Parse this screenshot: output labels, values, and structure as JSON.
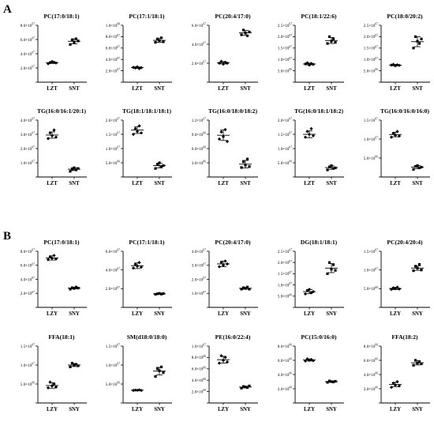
{
  "panel_labels": [
    "A",
    "B"
  ],
  "chart_data": [
    {
      "type": "scatter",
      "title": "PC(17:0/18:1)",
      "categories": [
        "LZT",
        "SNT"
      ],
      "yticks": [
        {
          "m": "2.0",
          "e": "07"
        },
        {
          "m": "4.0",
          "e": "07"
        },
        {
          "m": "6.0",
          "e": "07"
        },
        {
          "m": "8.0",
          "e": "07"
        }
      ],
      "ylim": [
        0,
        80000000.0
      ],
      "series": [
        {
          "values": [
            26000000.0,
            27500000.0,
            29000000.0,
            28000000.0,
            27000000.0
          ]
        },
        {
          "values": [
            53000000.0,
            59000000.0,
            56000000.0,
            61000000.0,
            58000000.0
          ]
        }
      ],
      "mean": [
        27500000.0,
        57500000.0
      ],
      "sd": [
        1200000.0,
        3500000.0
      ]
    },
    {
      "type": "scatter",
      "title": "PC(17:1/18:1)",
      "categories": [
        "LZT",
        "SNT"
      ],
      "yticks": [
        {
          "m": "2.0",
          "e": "07"
        },
        {
          "m": "4.0",
          "e": "07"
        },
        {
          "m": "6.0",
          "e": "07"
        },
        {
          "m": "8.0",
          "e": "07"
        },
        {
          "m": "1.0",
          "e": "08"
        }
      ],
      "ylim": [
        0,
        100000000.0
      ],
      "series": [
        {
          "values": [
            26000000.0,
            25000000.0,
            27000000.0,
            24000000.0,
            25500000.0
          ]
        },
        {
          "values": [
            70000000.0,
            76000000.0,
            73000000.0,
            78000000.0,
            71000000.0
          ]
        }
      ],
      "mean": [
        25500000.0,
        73500000.0
      ],
      "sd": [
        1200000.0,
        3500000.0
      ]
    },
    {
      "type": "scatter",
      "title": "PC(20:4/17:0)",
      "categories": [
        "LZT",
        "SNT"
      ],
      "yticks": [
        {
          "m": "2.0",
          "e": "07"
        },
        {
          "m": "4.0",
          "e": "07"
        },
        {
          "m": "6.0",
          "e": "07"
        }
      ],
      "ylim": [
        0,
        60000000.0
      ],
      "series": [
        {
          "values": [
            20000000.0,
            22000000.0,
            19000000.0,
            21000000.0,
            20000000.0
          ]
        },
        {
          "values": [
            50000000.0,
            55000000.0,
            52000000.0,
            49000000.0,
            53000000.0
          ]
        }
      ],
      "mean": [
        20500000.0,
        52000000.0
      ],
      "sd": [
        1200000.0,
        2500000.0
      ]
    },
    {
      "type": "scatter",
      "title": "PC(18:1/22:6)",
      "categories": [
        "LZT",
        "SNT"
      ],
      "yticks": [
        {
          "m": "5.0",
          "e": "06"
        },
        {
          "m": "1.0",
          "e": "07"
        },
        {
          "m": "1.5",
          "e": "07"
        },
        {
          "m": "2.0",
          "e": "07"
        },
        {
          "m": "2.5",
          "e": "07"
        }
      ],
      "ylim": [
        0,
        25000000.0
      ],
      "series": [
        {
          "values": [
            8000000.0,
            8500000.0,
            7500000.0,
            8200000.0,
            7800000.0
          ]
        },
        {
          "values": [
            17000000.0,
            20000000.0,
            18000000.0,
            19000000.0,
            17500000.0
          ]
        }
      ],
      "mean": [
        8000000.0,
        18300000.0
      ],
      "sd": [
        400000.0,
        1300000.0
      ]
    },
    {
      "type": "scatter",
      "title": "PC(18:0/20:2)",
      "categories": [
        "LZT",
        "SNT"
      ],
      "yticks": [
        {
          "m": "5.0",
          "e": "06"
        },
        {
          "m": "1.0",
          "e": "07"
        },
        {
          "m": "1.5",
          "e": "07"
        },
        {
          "m": "2.0",
          "e": "07"
        },
        {
          "m": "2.5",
          "e": "07"
        }
      ],
      "ylim": [
        0,
        25000000.0
      ],
      "series": [
        {
          "values": [
            7500000.0,
            7800000.0,
            7200000.0,
            7600000.0,
            7400000.0
          ]
        },
        {
          "values": [
            15000000.0,
            20000000.0,
            18000000.0,
            17000000.0,
            19000000.0
          ]
        }
      ],
      "mean": [
        7500000.0,
        17800000.0
      ],
      "sd": [
        300000.0,
        2200000.0
      ]
    },
    {
      "type": "scatter",
      "title": "TG(16:0/16:1/20:1)",
      "categories": [
        "LZT",
        "SNT"
      ],
      "yticks": [
        {
          "m": "1.0",
          "e": "07"
        },
        {
          "m": "2.0",
          "e": "07"
        },
        {
          "m": "3.0",
          "e": "07"
        },
        {
          "m": "4.0",
          "e": "07"
        }
      ],
      "ylim": [
        0,
        40000000.0
      ],
      "series": [
        {
          "values": [
            27000000.0,
            31000000.0,
            29000000.0,
            33000000.0,
            28000000.0
          ]
        },
        {
          "values": [
            4000000.0,
            5500000.0,
            6500000.0,
            5000000.0,
            6000000.0
          ]
        }
      ],
      "mean": [
        29500000.0,
        5500000.0
      ],
      "sd": [
        2200000.0,
        1000000.0
      ]
    },
    {
      "type": "scatter",
      "title": "TG(18:1/18:1/18:1)",
      "categories": [
        "LZT",
        "SNT"
      ],
      "yticks": [
        {
          "m": "5.0",
          "e": "06"
        },
        {
          "m": "1.0",
          "e": "07"
        },
        {
          "m": "1.5",
          "e": "07"
        },
        {
          "m": "2.0",
          "e": "07"
        }
      ],
      "ylim": [
        0,
        20000000.0
      ],
      "series": [
        {
          "values": [
            15000000.0,
            17000000.0,
            16000000.0,
            18000000.0,
            15500000.0
          ]
        },
        {
          "values": [
            3000000.0,
            4500000.0,
            5000000.0,
            3500000.0,
            4000000.0
          ]
        }
      ],
      "mean": [
        16500000.0,
        4000000.0
      ],
      "sd": [
        1200000.0,
        800000.0
      ]
    },
    {
      "type": "scatter",
      "title": "TG(16:0/18:0/18:2)",
      "categories": [
        "LZT",
        "SNT"
      ],
      "yticks": [
        {
          "m": "3.0",
          "e": "06"
        },
        {
          "m": "6.0",
          "e": "06"
        },
        {
          "m": "9.0",
          "e": "06"
        },
        {
          "m": "1.2",
          "e": "07"
        }
      ],
      "ylim": [
        0,
        12000000.0
      ],
      "series": [
        {
          "values": [
            8000000.0,
            9500000.0,
            8500000.0,
            10000000.0,
            7500000.0
          ]
        },
        {
          "values": [
            2000000.0,
            3200000.0,
            2500000.0,
            3800000.0,
            2200000.0
          ]
        }
      ],
      "mean": [
        8800000.0,
        2700000.0
      ],
      "sd": [
        1100000.0,
        800000.0
      ]
    },
    {
      "type": "scatter",
      "title": "TG(16:0/18:1/18:2)",
      "categories": [
        "LZT",
        "SNT"
      ],
      "yticks": [
        {
          "m": "5.0",
          "e": "06"
        },
        {
          "m": "1.0",
          "e": "07"
        },
        {
          "m": "1.5",
          "e": "07"
        },
        {
          "m": "2.0",
          "e": "07"
        }
      ],
      "ylim": [
        0,
        20000000.0
      ],
      "series": [
        {
          "values": [
            14000000.0,
            16000000.0,
            15000000.0,
            17000000.0,
            14500000.0
          ]
        },
        {
          "values": [
            2500000.0,
            3500000.0,
            4000000.0,
            3000000.0,
            3200000.0
          ]
        }
      ],
      "mean": [
        15000000.0,
        3300000.0
      ],
      "sd": [
        1200000.0,
        600000.0
      ]
    },
    {
      "type": "scatter",
      "title": "TG(16:0/16:0/16:0)",
      "categories": [
        "LZT",
        "SNT"
      ],
      "yticks": [
        {
          "m": "5.0",
          "e": "06"
        },
        {
          "m": "1.0",
          "e": "07"
        },
        {
          "m": "1.5",
          "e": "07"
        }
      ],
      "ylim": [
        0,
        15000000.0
      ],
      "series": [
        {
          "values": [
            10500000.0,
            11500000.0,
            11000000.0,
            12000000.0,
            10800000.0
          ]
        },
        {
          "values": [
            2000000.0,
            2800000.0,
            3000000.0,
            2400000.0,
            2600000.0
          ]
        }
      ],
      "mean": [
        11200000.0,
        2600000.0
      ],
      "sd": [
        600000.0,
        400000.0
      ]
    },
    {
      "type": "scatter",
      "title": "PC(17:0/18:1)",
      "categories": [
        "LZY",
        "SNY"
      ],
      "yticks": [
        {
          "m": "2.0",
          "e": "07"
        },
        {
          "m": "4.0",
          "e": "07"
        },
        {
          "m": "6.0",
          "e": "07"
        },
        {
          "m": "8.0",
          "e": "07"
        }
      ],
      "ylim": [
        0,
        80000000.0
      ],
      "series": [
        {
          "values": [
            68000000.0,
            72000000.0,
            70000000.0,
            74000000.0,
            69000000.0
          ]
        },
        {
          "values": [
            26000000.0,
            28000000.0,
            27000000.0,
            29000000.0,
            27500000.0
          ]
        }
      ],
      "mean": [
        70500000.0,
        27500000.0
      ],
      "sd": [
        3000000.0,
        1200000.0
      ]
    },
    {
      "type": "scatter",
      "title": "PC(17:1/18:1)",
      "categories": [
        "LZY",
        "SNY"
      ],
      "yticks": [
        {
          "m": "2.0",
          "e": "07"
        },
        {
          "m": "4.0",
          "e": "07"
        },
        {
          "m": "6.0",
          "e": "07"
        }
      ],
      "ylim": [
        0,
        60000000.0
      ],
      "series": [
        {
          "values": [
            42000000.0,
            46000000.0,
            44000000.0,
            48000000.0,
            43000000.0
          ]
        },
        {
          "values": [
            14000000.0,
            14500000.0,
            15000000.0,
            14200000.0,
            14800000.0
          ]
        }
      ],
      "mean": [
        44500000.0,
        14500000.0
      ],
      "sd": [
        3000000.0,
        500000.0
      ]
    },
    {
      "type": "scatter",
      "title": "PC(20:4/17:0)",
      "categories": [
        "LZY",
        "SNY"
      ],
      "yticks": [
        {
          "m": "1.0",
          "e": "07"
        },
        {
          "m": "2.0",
          "e": "07"
        },
        {
          "m": "3.0",
          "e": "07"
        },
        {
          "m": "4.0",
          "e": "07"
        }
      ],
      "ylim": [
        0,
        40000000.0
      ],
      "series": [
        {
          "values": [
            29000000.0,
            32000000.0,
            30000000.0,
            33000000.0,
            31000000.0
          ]
        },
        {
          "values": [
            13000000.0,
            14000000.0,
            13500000.0,
            14500000.0,
            13000000.0
          ]
        }
      ],
      "mean": [
        31000000.0,
        13600000.0
      ],
      "sd": [
        2000000.0,
        700000.0
      ]
    },
    {
      "type": "scatter",
      "title": "DG(18:1/18:1)",
      "categories": [
        "LZY",
        "SNY"
      ],
      "yticks": [
        {
          "m": "5.0",
          "e": "06"
        },
        {
          "m": "1.0",
          "e": "07"
        },
        {
          "m": "1.5",
          "e": "07"
        },
        {
          "m": "2.0",
          "e": "07"
        },
        {
          "m": "2.5",
          "e": "07"
        }
      ],
      "ylim": [
        0,
        25000000.0
      ],
      "series": [
        {
          "values": [
            6000000.0,
            7500000.0,
            8000000.0,
            6500000.0,
            7000000.0
          ]
        },
        {
          "values": [
            15000000.0,
            20000000.0,
            17000000.0,
            19000000.0,
            16500000.0
          ]
        }
      ],
      "mean": [
        7000000.0,
        17500000.0
      ],
      "sd": [
        900000.0,
        2000000.0
      ]
    },
    {
      "type": "scatter",
      "title": "PC(20:4/20:4)",
      "categories": [
        "LZY",
        "SNY"
      ],
      "yticks": [
        {
          "m": "5.0",
          "e": "06"
        },
        {
          "m": "1.0",
          "e": "07"
        },
        {
          "m": "1.5",
          "e": "07"
        }
      ],
      "ylim": [
        0,
        15000000.0
      ],
      "series": [
        {
          "values": [
            4800000.0,
            5200000.0,
            5000000.0,
            5400000.0,
            4900000.0
          ]
        },
        {
          "values": [
            9800000.0,
            11000000.0,
            10500000.0,
            11500000.0,
            10000000.0
          ]
        }
      ],
      "mean": [
        5050000.0,
        10500000.0
      ],
      "sd": [
        300000.0,
        600000.0
      ]
    },
    {
      "type": "scatter",
      "title": "FFA(18:1)",
      "categories": [
        "LZY",
        "SNY"
      ],
      "yticks": [
        {
          "m": "5.0",
          "e": "06"
        },
        {
          "m": "1.0",
          "e": "07"
        },
        {
          "m": "1.5",
          "e": "07"
        }
      ],
      "ylim": [
        0,
        15000000.0
      ],
      "series": [
        {
          "values": [
            4000000.0,
            5500000.0,
            4500000.0,
            5000000.0,
            4200000.0
          ]
        },
        {
          "values": [
            9500000.0,
            10500000.0,
            10000000.0,
            10200000.0,
            9800000.0
          ]
        }
      ],
      "mean": [
        4600000.0,
        10000000.0
      ],
      "sd": [
        700000.0,
        400000.0
      ]
    },
    {
      "type": "scatter",
      "title": "SM(d18:0/18:0)",
      "categories": [
        "LZY",
        "SNY"
      ],
      "yticks": [
        {
          "m": "5.0",
          "e": "06"
        },
        {
          "m": "1.0",
          "e": "07"
        },
        {
          "m": "1.5",
          "e": "07"
        }
      ],
      "ylim": [
        0,
        15000000.0
      ],
      "series": [
        {
          "values": [
            3300000.0,
            3400000.0,
            3350000.0,
            3450000.0,
            3300000.0
          ]
        },
        {
          "values": [
            7000000.0,
            9000000.0,
            8500000.0,
            9500000.0,
            8000000.0
          ]
        }
      ],
      "mean": [
        3360000.0,
        8400000.0
      ],
      "sd": [
        100000.0,
        1000000.0
      ]
    },
    {
      "type": "scatter",
      "title": "PE(16:0/22:4)",
      "categories": [
        "LZY",
        "SNY"
      ],
      "yticks": [
        {
          "m": "2.0",
          "e": "06"
        },
        {
          "m": "4.0",
          "e": "06"
        },
        {
          "m": "6.0",
          "e": "06"
        },
        {
          "m": "8.0",
          "e": "06"
        },
        {
          "m": "1.0",
          "e": "07"
        }
      ],
      "ylim": [
        0,
        10000000.0
      ],
      "series": [
        {
          "values": [
            7000000.0,
            8300000.0,
            7500000.0,
            8000000.0,
            7200000.0
          ]
        },
        {
          "values": [
            2600000.0,
            2900000.0,
            2800000.0,
            2700000.0,
            3000000.0
          ]
        }
      ],
      "mean": [
        7600000.0,
        2800000.0
      ],
      "sd": [
        600000.0,
        150000.0
      ]
    },
    {
      "type": "scatter",
      "title": "PC(15:0/16:0)",
      "categories": [
        "LZY",
        "SNY"
      ],
      "yticks": [
        {
          "m": "2.0",
          "e": "06"
        },
        {
          "m": "4.0",
          "e": "06"
        },
        {
          "m": "6.0",
          "e": "06"
        },
        {
          "m": "8.0",
          "e": "06"
        }
      ],
      "ylim": [
        0,
        8000000.0
      ],
      "series": [
        {
          "values": [
            5900000.0,
            6200000.0,
            6000000.0,
            6100000.0,
            5950000.0
          ]
        },
        {
          "values": [
            2900000.0,
            3100000.0,
            3000000.0,
            2950000.0,
            3050000.0
          ]
        }
      ],
      "mean": [
        6050000.0,
        3000000.0
      ],
      "sd": [
        150000.0,
        100000.0
      ]
    },
    {
      "type": "scatter",
      "title": "FFA(18:2)",
      "categories": [
        "LZY",
        "SNY"
      ],
      "yticks": [
        {
          "m": "2.0",
          "e": "06"
        },
        {
          "m": "4.0",
          "e": "06"
        },
        {
          "m": "6.0",
          "e": "06"
        },
        {
          "m": "8.0",
          "e": "06"
        }
      ],
      "ylim": [
        0,
        8000000.0
      ],
      "series": [
        {
          "values": [
            2200000.0,
            2800000.0,
            2500000.0,
            3000000.0,
            2400000.0
          ]
        },
        {
          "values": [
            5300000.0,
            6000000.0,
            5600000.0,
            5800000.0,
            5500000.0
          ]
        }
      ],
      "mean": [
        2600000.0,
        5650000.0
      ],
      "sd": [
        300000.0,
        300000.0
      ]
    }
  ]
}
